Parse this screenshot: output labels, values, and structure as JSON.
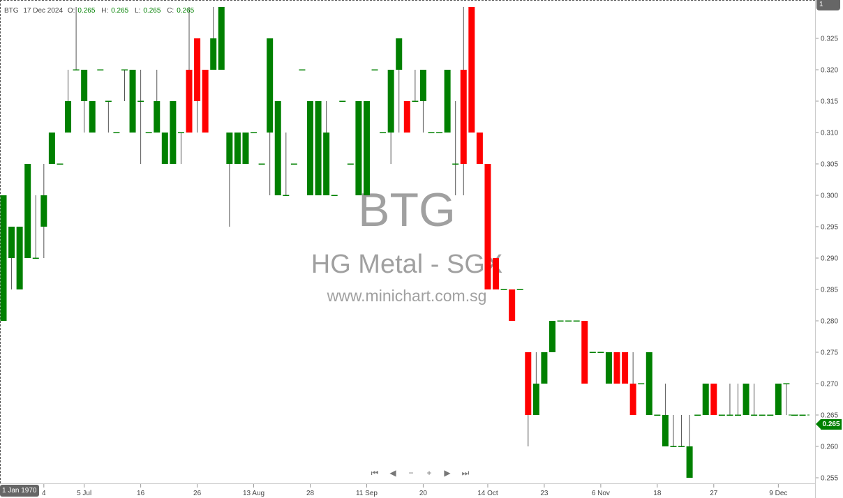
{
  "legend": {
    "symbol": "BTG",
    "date": "17 Dec 2024",
    "o_label": "O:",
    "o": "0.265",
    "h_label": "H:",
    "h": "0.265",
    "l_label": "L:",
    "l": "0.265",
    "c_label": "C:",
    "c": "0.265"
  },
  "watermark": {
    "ticker": "BTG",
    "name": "HG Metal - SGX",
    "site": "www.minichart.com.sg"
  },
  "top_right_box": "1",
  "crosshair_date": "1 Jan 1970",
  "last_price": "0.265",
  "nav": [
    {
      "icon": "first-icon",
      "glyph": "⏮"
    },
    {
      "icon": "prev-icon",
      "glyph": "◀"
    },
    {
      "icon": "zoom-out-icon",
      "glyph": "−"
    },
    {
      "icon": "zoom-in-icon",
      "glyph": "+"
    },
    {
      "icon": "next-icon",
      "glyph": "▶"
    },
    {
      "icon": "last-icon",
      "glyph": "⏭"
    }
  ],
  "colors": {
    "up": "#008000",
    "down": "#ff0000",
    "wick": "#555555",
    "axis": "#cccccc"
  },
  "chart_data": {
    "type": "candlestick",
    "title": "",
    "ylim": [
      0.2525,
      0.3317
    ],
    "yticks": [
      "0.255",
      "0.260",
      "0.265",
      "0.270",
      "0.275",
      "0.280",
      "0.285",
      "0.290",
      "0.295",
      "0.300",
      "0.305",
      "0.310",
      "0.315",
      "0.320",
      "0.325"
    ],
    "xticks": [
      {
        "label": "4",
        "index": 5
      },
      {
        "label": "5 Jul",
        "index": 10
      },
      {
        "label": "16",
        "index": 17
      },
      {
        "label": "26",
        "index": 24
      },
      {
        "label": "13 Aug",
        "index": 31
      },
      {
        "label": "28",
        "index": 38
      },
      {
        "label": "11 Sep",
        "index": 45
      },
      {
        "label": "20",
        "index": 52
      },
      {
        "label": "14 Oct",
        "index": 60
      },
      {
        "label": "23",
        "index": 67
      },
      {
        "label": "6 Nov",
        "index": 74
      },
      {
        "label": "18",
        "index": 81
      },
      {
        "label": "27",
        "index": 88
      },
      {
        "label": "9 Dec",
        "index": 96
      }
    ],
    "ohlc": [
      [
        0.28,
        0.3,
        0.28,
        0.3
      ],
      [
        0.29,
        0.295,
        0.285,
        0.295
      ],
      [
        0.285,
        0.295,
        0.285,
        0.295
      ],
      [
        0.29,
        0.305,
        0.29,
        0.305
      ],
      [
        0.29,
        0.3,
        0.29,
        0.29
      ],
      [
        0.295,
        0.305,
        0.29,
        0.3
      ],
      [
        0.305,
        0.31,
        0.305,
        0.31
      ],
      [
        0.305,
        0.305,
        0.305,
        0.305
      ],
      [
        0.31,
        0.32,
        0.31,
        0.315
      ],
      [
        0.32,
        0.33,
        0.32,
        0.32
      ],
      [
        0.315,
        0.32,
        0.31,
        0.32
      ],
      [
        0.31,
        0.315,
        0.31,
        0.315
      ],
      [
        0.32,
        0.32,
        0.32,
        0.32
      ],
      [
        0.315,
        0.315,
        0.31,
        0.315
      ],
      [
        0.31,
        0.31,
        0.31,
        0.31
      ],
      [
        0.32,
        0.32,
        0.315,
        0.32
      ],
      [
        0.31,
        0.32,
        0.31,
        0.32
      ],
      [
        0.315,
        0.32,
        0.305,
        0.315
      ],
      [
        0.31,
        0.31,
        0.31,
        0.31
      ],
      [
        0.31,
        0.32,
        0.31,
        0.315
      ],
      [
        0.305,
        0.31,
        0.305,
        0.31
      ],
      [
        0.305,
        0.315,
        0.305,
        0.315
      ],
      [
        0.31,
        0.31,
        0.305,
        0.31
      ],
      [
        0.32,
        0.33,
        0.31,
        0.31
      ],
      [
        0.325,
        0.325,
        0.31,
        0.315
      ],
      [
        0.32,
        0.32,
        0.31,
        0.31
      ],
      [
        0.32,
        0.33,
        0.32,
        0.325
      ],
      [
        0.32,
        0.33,
        0.32,
        0.33
      ],
      [
        0.305,
        0.31,
        0.295,
        0.31
      ],
      [
        0.305,
        0.31,
        0.305,
        0.31
      ],
      [
        0.305,
        0.31,
        0.305,
        0.31
      ],
      [
        0.31,
        0.31,
        0.31,
        0.31
      ],
      [
        0.305,
        0.305,
        0.305,
        0.305
      ],
      [
        0.31,
        0.325,
        0.3,
        0.325
      ],
      [
        0.3,
        0.315,
        0.3,
        0.315
      ],
      [
        0.3,
        0.31,
        0.3,
        0.3
      ],
      [
        0.305,
        0.305,
        0.305,
        0.305
      ],
      [
        0.32,
        0.32,
        0.32,
        0.32
      ],
      [
        0.3,
        0.315,
        0.3,
        0.315
      ],
      [
        0.3,
        0.315,
        0.3,
        0.315
      ],
      [
        0.3,
        0.315,
        0.3,
        0.31
      ],
      [
        0.3,
        0.3,
        0.3,
        0.3
      ],
      [
        0.315,
        0.315,
        0.315,
        0.315
      ],
      [
        0.305,
        0.305,
        0.305,
        0.305
      ],
      [
        0.3,
        0.315,
        0.3,
        0.315
      ],
      [
        0.3,
        0.315,
        0.3,
        0.315
      ],
      [
        0.32,
        0.32,
        0.32,
        0.32
      ],
      [
        0.31,
        0.31,
        0.31,
        0.31
      ],
      [
        0.31,
        0.32,
        0.305,
        0.32
      ],
      [
        0.32,
        0.325,
        0.31,
        0.325
      ],
      [
        0.315,
        0.315,
        0.31,
        0.31
      ],
      [
        0.315,
        0.32,
        0.315,
        0.315
      ],
      [
        0.315,
        0.32,
        0.31,
        0.32
      ],
      [
        0.31,
        0.31,
        0.31,
        0.31
      ],
      [
        0.31,
        0.31,
        0.31,
        0.31
      ],
      [
        0.31,
        0.32,
        0.31,
        0.32
      ],
      [
        0.305,
        0.315,
        0.3,
        0.305
      ],
      [
        0.32,
        0.33,
        0.3,
        0.305
      ],
      [
        0.33,
        0.33,
        0.31,
        0.31
      ],
      [
        0.31,
        0.31,
        0.305,
        0.305
      ],
      [
        0.305,
        0.305,
        0.285,
        0.285
      ],
      [
        0.29,
        0.29,
        0.285,
        0.285
      ],
      [
        0.285,
        0.285,
        0.285,
        0.285
      ],
      [
        0.285,
        0.285,
        0.28,
        0.28
      ],
      [
        0.285,
        0.285,
        0.285,
        0.285
      ],
      [
        0.275,
        0.275,
        0.26,
        0.265
      ],
      [
        0.265,
        0.275,
        0.265,
        0.27
      ],
      [
        0.27,
        0.275,
        0.27,
        0.275
      ],
      [
        0.275,
        0.28,
        0.275,
        0.28
      ],
      [
        0.28,
        0.28,
        0.28,
        0.28
      ],
      [
        0.28,
        0.28,
        0.28,
        0.28
      ],
      [
        0.28,
        0.28,
        0.28,
        0.28
      ],
      [
        0.28,
        0.28,
        0.27,
        0.27
      ],
      [
        0.275,
        0.275,
        0.275,
        0.275
      ],
      [
        0.275,
        0.275,
        0.275,
        0.275
      ],
      [
        0.27,
        0.275,
        0.27,
        0.275
      ],
      [
        0.275,
        0.275,
        0.27,
        0.27
      ],
      [
        0.275,
        0.275,
        0.27,
        0.27
      ],
      [
        0.27,
        0.275,
        0.265,
        0.265
      ],
      [
        0.27,
        0.27,
        0.27,
        0.27
      ],
      [
        0.265,
        0.275,
        0.265,
        0.275
      ],
      [
        0.265,
        0.265,
        0.265,
        0.265
      ],
      [
        0.26,
        0.27,
        0.26,
        0.265
      ],
      [
        0.26,
        0.265,
        0.26,
        0.26
      ],
      [
        0.26,
        0.265,
        0.26,
        0.26
      ],
      [
        0.255,
        0.265,
        0.255,
        0.26
      ],
      [
        0.265,
        0.265,
        0.265,
        0.265
      ],
      [
        0.265,
        0.27,
        0.265,
        0.27
      ],
      [
        0.27,
        0.27,
        0.265,
        0.265
      ],
      [
        0.265,
        0.265,
        0.265,
        0.265
      ],
      [
        0.265,
        0.27,
        0.265,
        0.265
      ],
      [
        0.265,
        0.27,
        0.265,
        0.265
      ],
      [
        0.265,
        0.27,
        0.265,
        0.27
      ],
      [
        0.265,
        0.27,
        0.265,
        0.265
      ],
      [
        0.265,
        0.265,
        0.265,
        0.265
      ],
      [
        0.265,
        0.265,
        0.265,
        0.265
      ],
      [
        0.265,
        0.27,
        0.265,
        0.27
      ],
      [
        0.27,
        0.27,
        0.265,
        0.27
      ],
      [
        0.265,
        0.265,
        0.265,
        0.265
      ],
      [
        0.265,
        0.265,
        0.265,
        0.265
      ]
    ]
  }
}
